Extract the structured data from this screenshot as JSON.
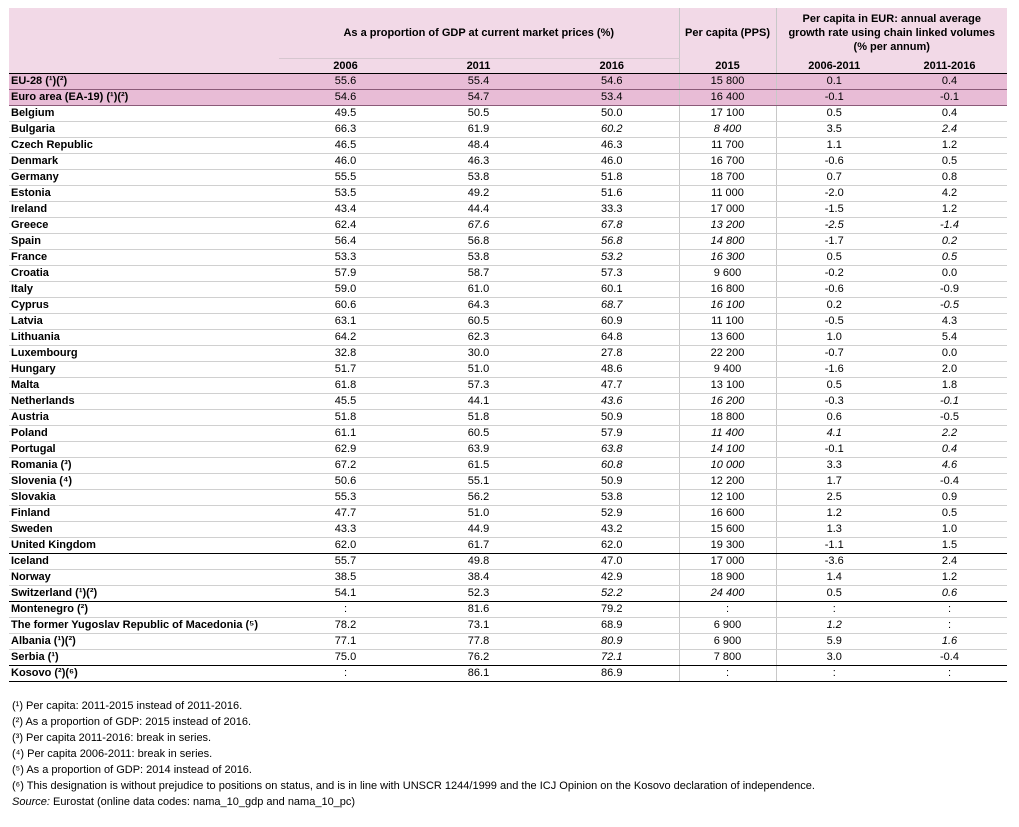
{
  "header": {
    "group_gdp": "As a proportion of GDP at current market prices (%)",
    "group_pps": "Per capita (PPS)",
    "group_growth": "Per capita in EUR: annual average growth rate using chain linked volumes (% per annum)",
    "col_2006": "2006",
    "col_2011": "2011",
    "col_2016": "2016",
    "col_2015": "2015",
    "col_0611": "2006-2011",
    "col_1116": "2011-2016"
  },
  "rows": [
    {
      "c0": "EU-28 (¹)(²)",
      "c1": "55.6",
      "c2": "55.4",
      "c3": "54.6",
      "c4": "15 800",
      "c5": "0.1",
      "c6": "0.4",
      "agg": true
    },
    {
      "c0": "Euro area (EA-19) (¹)(²)",
      "c1": "54.6",
      "c2": "54.7",
      "c3": "53.4",
      "c4": "16 400",
      "c5": "-0.1",
      "c6": "-0.1",
      "agg": true
    },
    {
      "c0": "Belgium",
      "c1": "49.5",
      "c2": "50.5",
      "c3": "50.0",
      "c4": "17 100",
      "c5": "0.5",
      "c6": "0.4"
    },
    {
      "c0": "Bulgaria",
      "c1": "66.3",
      "c2": "61.9",
      "c3": "60.2",
      "c4": "8 400",
      "c5": "3.5",
      "c6": "2.4",
      "i3": true,
      "i4": true,
      "i6": true
    },
    {
      "c0": "Czech Republic",
      "c1": "46.5",
      "c2": "48.4",
      "c3": "46.3",
      "c4": "11 700",
      "c5": "1.1",
      "c6": "1.2"
    },
    {
      "c0": "Denmark",
      "c1": "46.0",
      "c2": "46.3",
      "c3": "46.0",
      "c4": "16 700",
      "c5": "-0.6",
      "c6": "0.5"
    },
    {
      "c0": "Germany",
      "c1": "55.5",
      "c2": "53.8",
      "c3": "51.8",
      "c4": "18 700",
      "c5": "0.7",
      "c6": "0.8"
    },
    {
      "c0": "Estonia",
      "c1": "53.5",
      "c2": "49.2",
      "c3": "51.6",
      "c4": "11 000",
      "c5": "-2.0",
      "c6": "4.2"
    },
    {
      "c0": "Ireland",
      "c1": "43.4",
      "c2": "44.4",
      "c3": "33.3",
      "c4": "17 000",
      "c5": "-1.5",
      "c6": "1.2"
    },
    {
      "c0": "Greece",
      "c1": "62.4",
      "c2": "67.6",
      "c3": "67.8",
      "c4": "13 200",
      "c5": "-2.5",
      "c6": "-1.4",
      "i2": true,
      "i3": true,
      "i4": true,
      "i5": true,
      "i6": true
    },
    {
      "c0": "Spain",
      "c1": "56.4",
      "c2": "56.8",
      "c3": "56.8",
      "c4": "14 800",
      "c5": "-1.7",
      "c6": "0.2",
      "i3": true,
      "i4": true,
      "i6": true
    },
    {
      "c0": "France",
      "c1": "53.3",
      "c2": "53.8",
      "c3": "53.2",
      "c4": "16 300",
      "c5": "0.5",
      "c6": "0.5",
      "i3": true,
      "i4": true,
      "i6": true
    },
    {
      "c0": "Croatia",
      "c1": "57.9",
      "c2": "58.7",
      "c3": "57.3",
      "c4": "9 600",
      "c5": "-0.2",
      "c6": "0.0"
    },
    {
      "c0": "Italy",
      "c1": "59.0",
      "c2": "61.0",
      "c3": "60.1",
      "c4": "16 800",
      "c5": "-0.6",
      "c6": "-0.9"
    },
    {
      "c0": "Cyprus",
      "c1": "60.6",
      "c2": "64.3",
      "c3": "68.7",
      "c4": "16 100",
      "c5": "0.2",
      "c6": "-0.5",
      "i3": true,
      "i4": true,
      "i6": true
    },
    {
      "c0": "Latvia",
      "c1": "63.1",
      "c2": "60.5",
      "c3": "60.9",
      "c4": "11 100",
      "c5": "-0.5",
      "c6": "4.3"
    },
    {
      "c0": "Lithuania",
      "c1": "64.2",
      "c2": "62.3",
      "c3": "64.8",
      "c4": "13 600",
      "c5": "1.0",
      "c6": "5.4"
    },
    {
      "c0": "Luxembourg",
      "c1": "32.8",
      "c2": "30.0",
      "c3": "27.8",
      "c4": "22 200",
      "c5": "-0.7",
      "c6": "0.0"
    },
    {
      "c0": "Hungary",
      "c1": "51.7",
      "c2": "51.0",
      "c3": "48.6",
      "c4": "9 400",
      "c5": "-1.6",
      "c6": "2.0"
    },
    {
      "c0": "Malta",
      "c1": "61.8",
      "c2": "57.3",
      "c3": "47.7",
      "c4": "13 100",
      "c5": "0.5",
      "c6": "1.8"
    },
    {
      "c0": "Netherlands",
      "c1": "45.5",
      "c2": "44.1",
      "c3": "43.6",
      "c4": "16 200",
      "c5": "-0.3",
      "c6": "-0.1",
      "i3": true,
      "i4": true,
      "i6": true
    },
    {
      "c0": "Austria",
      "c1": "51.8",
      "c2": "51.8",
      "c3": "50.9",
      "c4": "18 800",
      "c5": "0.6",
      "c6": "-0.5"
    },
    {
      "c0": "Poland",
      "c1": "61.1",
      "c2": "60.5",
      "c3": "57.9",
      "c4": "11 400",
      "c5": "4.1",
      "c6": "2.2",
      "i4": true,
      "i5": true,
      "i6": true
    },
    {
      "c0": "Portugal",
      "c1": "62.9",
      "c2": "63.9",
      "c3": "63.8",
      "c4": "14 100",
      "c5": "-0.1",
      "c6": "0.4",
      "i3": true,
      "i4": true,
      "i6": true
    },
    {
      "c0": "Romania (³)",
      "c1": "67.2",
      "c2": "61.5",
      "c3": "60.8",
      "c4": "10 000",
      "c5": "3.3",
      "c6": "4.6",
      "i3": true,
      "i4": true,
      "i6": true
    },
    {
      "c0": "Slovenia (⁴)",
      "c1": "50.6",
      "c2": "55.1",
      "c3": "50.9",
      "c4": "12 200",
      "c5": "1.7",
      "c6": "-0.4"
    },
    {
      "c0": "Slovakia",
      "c1": "55.3",
      "c2": "56.2",
      "c3": "53.8",
      "c4": "12 100",
      "c5": "2.5",
      "c6": "0.9"
    },
    {
      "c0": "Finland",
      "c1": "47.7",
      "c2": "51.0",
      "c3": "52.9",
      "c4": "16 600",
      "c5": "1.2",
      "c6": "0.5"
    },
    {
      "c0": "Sweden",
      "c1": "43.3",
      "c2": "44.9",
      "c3": "43.2",
      "c4": "15 600",
      "c5": "1.3",
      "c6": "1.0"
    },
    {
      "c0": "United Kingdom",
      "c1": "62.0",
      "c2": "61.7",
      "c3": "62.0",
      "c4": "19 300",
      "c5": "-1.1",
      "c6": "1.5",
      "gend": true
    },
    {
      "c0": "Iceland",
      "c1": "55.7",
      "c2": "49.8",
      "c3": "47.0",
      "c4": "17 000",
      "c5": "-3.6",
      "c6": "2.4"
    },
    {
      "c0": "Norway",
      "c1": "38.5",
      "c2": "38.4",
      "c3": "42.9",
      "c4": "18 900",
      "c5": "1.4",
      "c6": "1.2"
    },
    {
      "c0": "Switzerland (¹)(²)",
      "c1": "54.1",
      "c2": "52.3",
      "c3": "52.2",
      "c4": "24 400",
      "c5": "0.5",
      "c6": "0.6",
      "i3": true,
      "i4": true,
      "i6": true,
      "gend": true
    },
    {
      "c0": "Montenegro (²)",
      "c1": ":",
      "c2": "81.6",
      "c3": "79.2",
      "c4": ":",
      "c5": ":",
      "c6": ":"
    },
    {
      "c0": "The former Yugoslav Republic of Macedonia (⁵)",
      "c1": "78.2",
      "c2": "73.1",
      "c3": "68.9",
      "c4": "6 900",
      "c5": "1.2",
      "c6": ":",
      "i5": true
    },
    {
      "c0": "Albania (¹)(²)",
      "c1": "77.1",
      "c2": "77.8",
      "c3": "80.9",
      "c4": "6 900",
      "c5": "5.9",
      "c6": "1.6",
      "i3": true,
      "i6": true
    },
    {
      "c0": "Serbia (¹)",
      "c1": "75.0",
      "c2": "76.2",
      "c3": "72.1",
      "c4": "7 800",
      "c5": "3.0",
      "c6": "-0.4",
      "i3": true,
      "gend": true
    },
    {
      "c0": "Kosovo (²)(⁶)",
      "c1": ":",
      "c2": "86.1",
      "c3": "86.9",
      "c4": ":",
      "c5": ":",
      "c6": ":",
      "last": true
    }
  ],
  "notes": [
    "(¹) Per capita: 2011-2015 instead of 2011-2016.",
    "(²) As a proportion of GDP: 2015 instead of 2016.",
    "(³) Per capita 2011-2016: break in series.",
    "(⁴) Per capita 2006-2011: break in series.",
    "(⁵) As a proportion of GDP: 2014 instead of 2016.",
    "(⁶) This designation is without prejudice to positions on status, and is in line with UNSCR 1244/1999 and the ICJ Opinion on the Kosovo declaration of independence."
  ],
  "source": {
    "label": "Source:",
    "text": " Eurostat (online data codes: nama_10_gdp and nama_10_pc)"
  }
}
